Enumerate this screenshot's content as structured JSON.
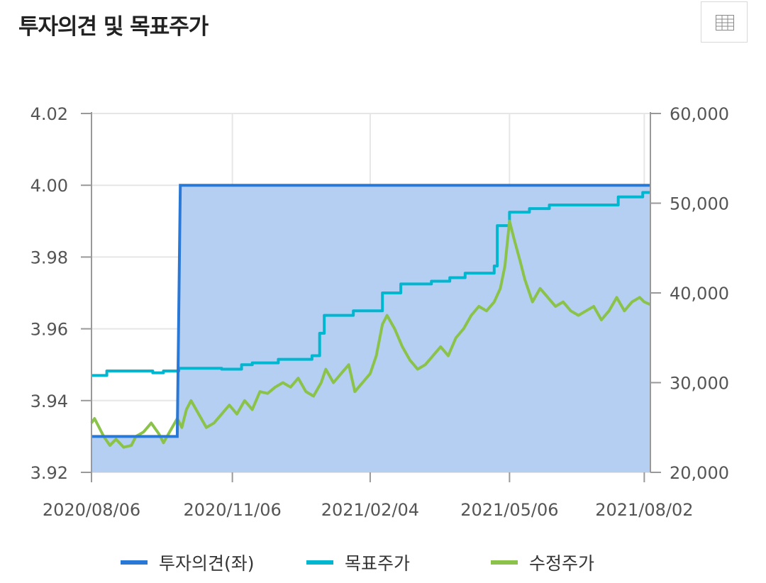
{
  "header": {
    "title": "투자의견 및 목표주가",
    "table_icon": "table-icon"
  },
  "colors": {
    "opinion": "#2a78d6",
    "opinion_fill": "#b5cff3",
    "target": "#00b7cf",
    "price": "#8bc34a",
    "grid": "#e6e6e6",
    "axis": "#999999"
  },
  "chart_data": {
    "type": "line",
    "x_ticks": [
      "2020/08/06",
      "2020/11/06",
      "2021/02/04",
      "2021/05/06",
      "2021/08/02"
    ],
    "x_range": [
      "2020/08/06",
      "2021/08/06"
    ],
    "y_left": {
      "ticks": [
        "4.02",
        "4.00",
        "3.98",
        "3.96",
        "3.94",
        "3.92"
      ],
      "range": [
        3.92,
        4.02
      ]
    },
    "y_right": {
      "ticks": [
        "60,000",
        "50,000",
        "40,000",
        "30,000",
        "20,000"
      ],
      "range": [
        20000,
        60000
      ]
    },
    "legend": [
      "투자의견(좌)",
      "목표주가",
      "수정주가"
    ],
    "grid": true,
    "legend_position": "bottom",
    "series": [
      {
        "name": "투자의견(좌)",
        "axis": "left",
        "style": "step-area",
        "points": [
          [
            "2020/08/06",
            3.93
          ],
          [
            "2020/10/01",
            3.93
          ],
          [
            "2020/10/03",
            4.0
          ],
          [
            "2021/08/06",
            4.0
          ]
        ]
      },
      {
        "name": "목표주가",
        "axis": "right",
        "style": "step",
        "points": [
          [
            "2020/08/06",
            30800
          ],
          [
            "2020/08/16",
            31300
          ],
          [
            "2020/09/15",
            31100
          ],
          [
            "2020/09/22",
            31300
          ],
          [
            "2020/10/02",
            31600
          ],
          [
            "2020/10/30",
            31500
          ],
          [
            "2020/11/12",
            32000
          ],
          [
            "2020/11/19",
            32200
          ],
          [
            "2020/12/06",
            32600
          ],
          [
            "2020/12/28",
            33000
          ],
          [
            "2021/01/02",
            35500
          ],
          [
            "2021/01/05",
            37500
          ],
          [
            "2021/01/24",
            38000
          ],
          [
            "2021/02/12",
            40000
          ],
          [
            "2021/02/24",
            41000
          ],
          [
            "2021/03/16",
            41300
          ],
          [
            "2021/03/28",
            41700
          ],
          [
            "2021/04/07",
            42200
          ],
          [
            "2021/04/26",
            43000
          ],
          [
            "2021/04/28",
            47500
          ],
          [
            "2021/05/06",
            49000
          ],
          [
            "2021/05/19",
            49400
          ],
          [
            "2021/06/01",
            49800
          ],
          [
            "2021/07/16",
            50700
          ],
          [
            "2021/08/01",
            51200
          ]
        ]
      },
      {
        "name": "수정주가",
        "axis": "right",
        "style": "line",
        "points": [
          [
            "2020/08/06",
            25500
          ],
          [
            "2020/08/08",
            26000
          ],
          [
            "2020/08/11",
            25000
          ],
          [
            "2020/08/14",
            24000
          ],
          [
            "2020/08/18",
            23000
          ],
          [
            "2020/08/22",
            23700
          ],
          [
            "2020/08/27",
            22800
          ],
          [
            "2020/09/01",
            23000
          ],
          [
            "2020/09/04",
            24000
          ],
          [
            "2020/09/09",
            24500
          ],
          [
            "2020/09/14",
            25500
          ],
          [
            "2020/09/19",
            24300
          ],
          [
            "2020/09/22",
            23300
          ],
          [
            "2020/09/27",
            24800
          ],
          [
            "2020/10/01",
            26000
          ],
          [
            "2020/10/04",
            25000
          ],
          [
            "2020/10/07",
            27000
          ],
          [
            "2020/10/10",
            28000
          ],
          [
            "2020/10/15",
            26500
          ],
          [
            "2020/10/20",
            25000
          ],
          [
            "2020/10/25",
            25500
          ],
          [
            "2020/10/30",
            26500
          ],
          [
            "2020/11/04",
            27500
          ],
          [
            "2020/11/09",
            26500
          ],
          [
            "2020/11/14",
            28000
          ],
          [
            "2020/11/19",
            27000
          ],
          [
            "2020/11/24",
            29000
          ],
          [
            "2020/11/29",
            28800
          ],
          [
            "2020/12/04",
            29500
          ],
          [
            "2020/12/09",
            30000
          ],
          [
            "2020/12/14",
            29500
          ],
          [
            "2020/12/19",
            30500
          ],
          [
            "2020/12/24",
            29000
          ],
          [
            "2020/12/29",
            28500
          ],
          [
            "2021/01/03",
            30000
          ],
          [
            "2021/01/06",
            31500
          ],
          [
            "2021/01/11",
            30000
          ],
          [
            "2021/01/16",
            31000
          ],
          [
            "2021/01/21",
            32000
          ],
          [
            "2021/01/25",
            29000
          ],
          [
            "2021/01/30",
            30000
          ],
          [
            "2021/02/04",
            31000
          ],
          [
            "2021/02/08",
            33000
          ],
          [
            "2021/02/12",
            36500
          ],
          [
            "2021/02/15",
            37500
          ],
          [
            "2021/02/20",
            36000
          ],
          [
            "2021/02/25",
            34000
          ],
          [
            "2021/03/02",
            32500
          ],
          [
            "2021/03/07",
            31500
          ],
          [
            "2021/03/12",
            32000
          ],
          [
            "2021/03/17",
            33000
          ],
          [
            "2021/03/22",
            34000
          ],
          [
            "2021/03/27",
            33000
          ],
          [
            "2021/04/01",
            35000
          ],
          [
            "2021/04/06",
            36000
          ],
          [
            "2021/04/11",
            37500
          ],
          [
            "2021/04/16",
            38500
          ],
          [
            "2021/04/21",
            38000
          ],
          [
            "2021/04/26",
            39000
          ],
          [
            "2021/04/30",
            40500
          ],
          [
            "2021/05/03",
            43000
          ],
          [
            "2021/05/06",
            48000
          ],
          [
            "2021/05/09",
            46000
          ],
          [
            "2021/05/13",
            43500
          ],
          [
            "2021/05/16",
            41500
          ],
          [
            "2021/05/21",
            39000
          ],
          [
            "2021/05/26",
            40500
          ],
          [
            "2021/05/31",
            39500
          ],
          [
            "2021/06/05",
            38500
          ],
          [
            "2021/06/10",
            39000
          ],
          [
            "2021/06/15",
            38000
          ],
          [
            "2021/06/20",
            37500
          ],
          [
            "2021/06/25",
            38000
          ],
          [
            "2021/06/30",
            38500
          ],
          [
            "2021/07/05",
            37000
          ],
          [
            "2021/07/10",
            38000
          ],
          [
            "2021/07/15",
            39500
          ],
          [
            "2021/07/20",
            38000
          ],
          [
            "2021/07/25",
            39000
          ],
          [
            "2021/07/30",
            39500
          ],
          [
            "2021/08/02",
            39000
          ],
          [
            "2021/08/06",
            38700
          ]
        ]
      }
    ]
  }
}
